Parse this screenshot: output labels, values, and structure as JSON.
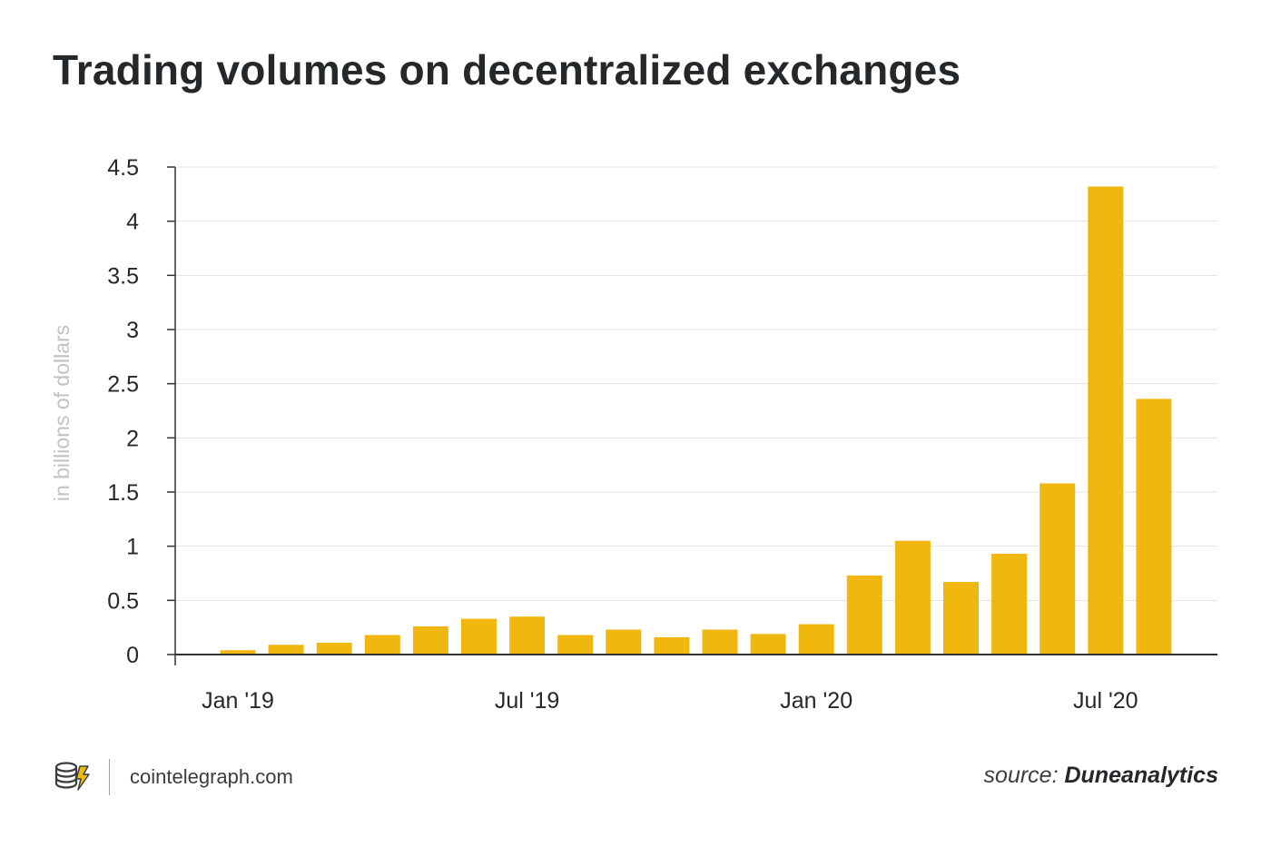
{
  "title": "Trading volumes on decentralized exchanges",
  "branding": {
    "site": "cointelegraph.com",
    "logo_icon": "cointelegraph-logo-icon"
  },
  "source": {
    "label": "source:",
    "name": "Duneanalytics"
  },
  "colors": {
    "bar": "#f0b80f",
    "text": "#25282b",
    "grid": "#e3e3e3",
    "axis": "#333333",
    "ylabel": "#c2c2c2"
  },
  "chart_data": {
    "type": "bar",
    "title": "Trading volumes on decentralized exchanges",
    "ylabel": "in billions of dollars",
    "xlabel": "",
    "ylim": [
      0,
      4.5
    ],
    "yticks": [
      0,
      0.5,
      1,
      1.5,
      2,
      2.5,
      3,
      3.5,
      4,
      4.5
    ],
    "ytick_labels": [
      "0",
      "0.5",
      "1",
      "1.5",
      "2",
      "2.5",
      "3",
      "3.5",
      "4",
      "4.5"
    ],
    "xticks": [
      {
        "label": "Jan '19",
        "category": "2019-01"
      },
      {
        "label": "Jul '19",
        "category": "2019-07"
      },
      {
        "label": "Jan '20",
        "category": "2020-01"
      },
      {
        "label": "Jul '20",
        "category": "2020-07"
      }
    ],
    "categories": [
      "2019-01",
      "2019-02",
      "2019-03",
      "2019-04",
      "2019-05",
      "2019-06",
      "2019-07",
      "2019-08",
      "2019-09",
      "2019-10",
      "2019-11",
      "2019-12",
      "2020-01",
      "2020-02",
      "2020-03",
      "2020-04",
      "2020-05",
      "2020-06",
      "2020-07",
      "2020-08"
    ],
    "values": [
      0.04,
      0.09,
      0.11,
      0.18,
      0.26,
      0.33,
      0.35,
      0.18,
      0.23,
      0.16,
      0.23,
      0.19,
      0.28,
      0.73,
      1.05,
      0.67,
      0.93,
      1.58,
      4.32,
      2.36
    ],
    "grid": true,
    "legend": "none"
  }
}
